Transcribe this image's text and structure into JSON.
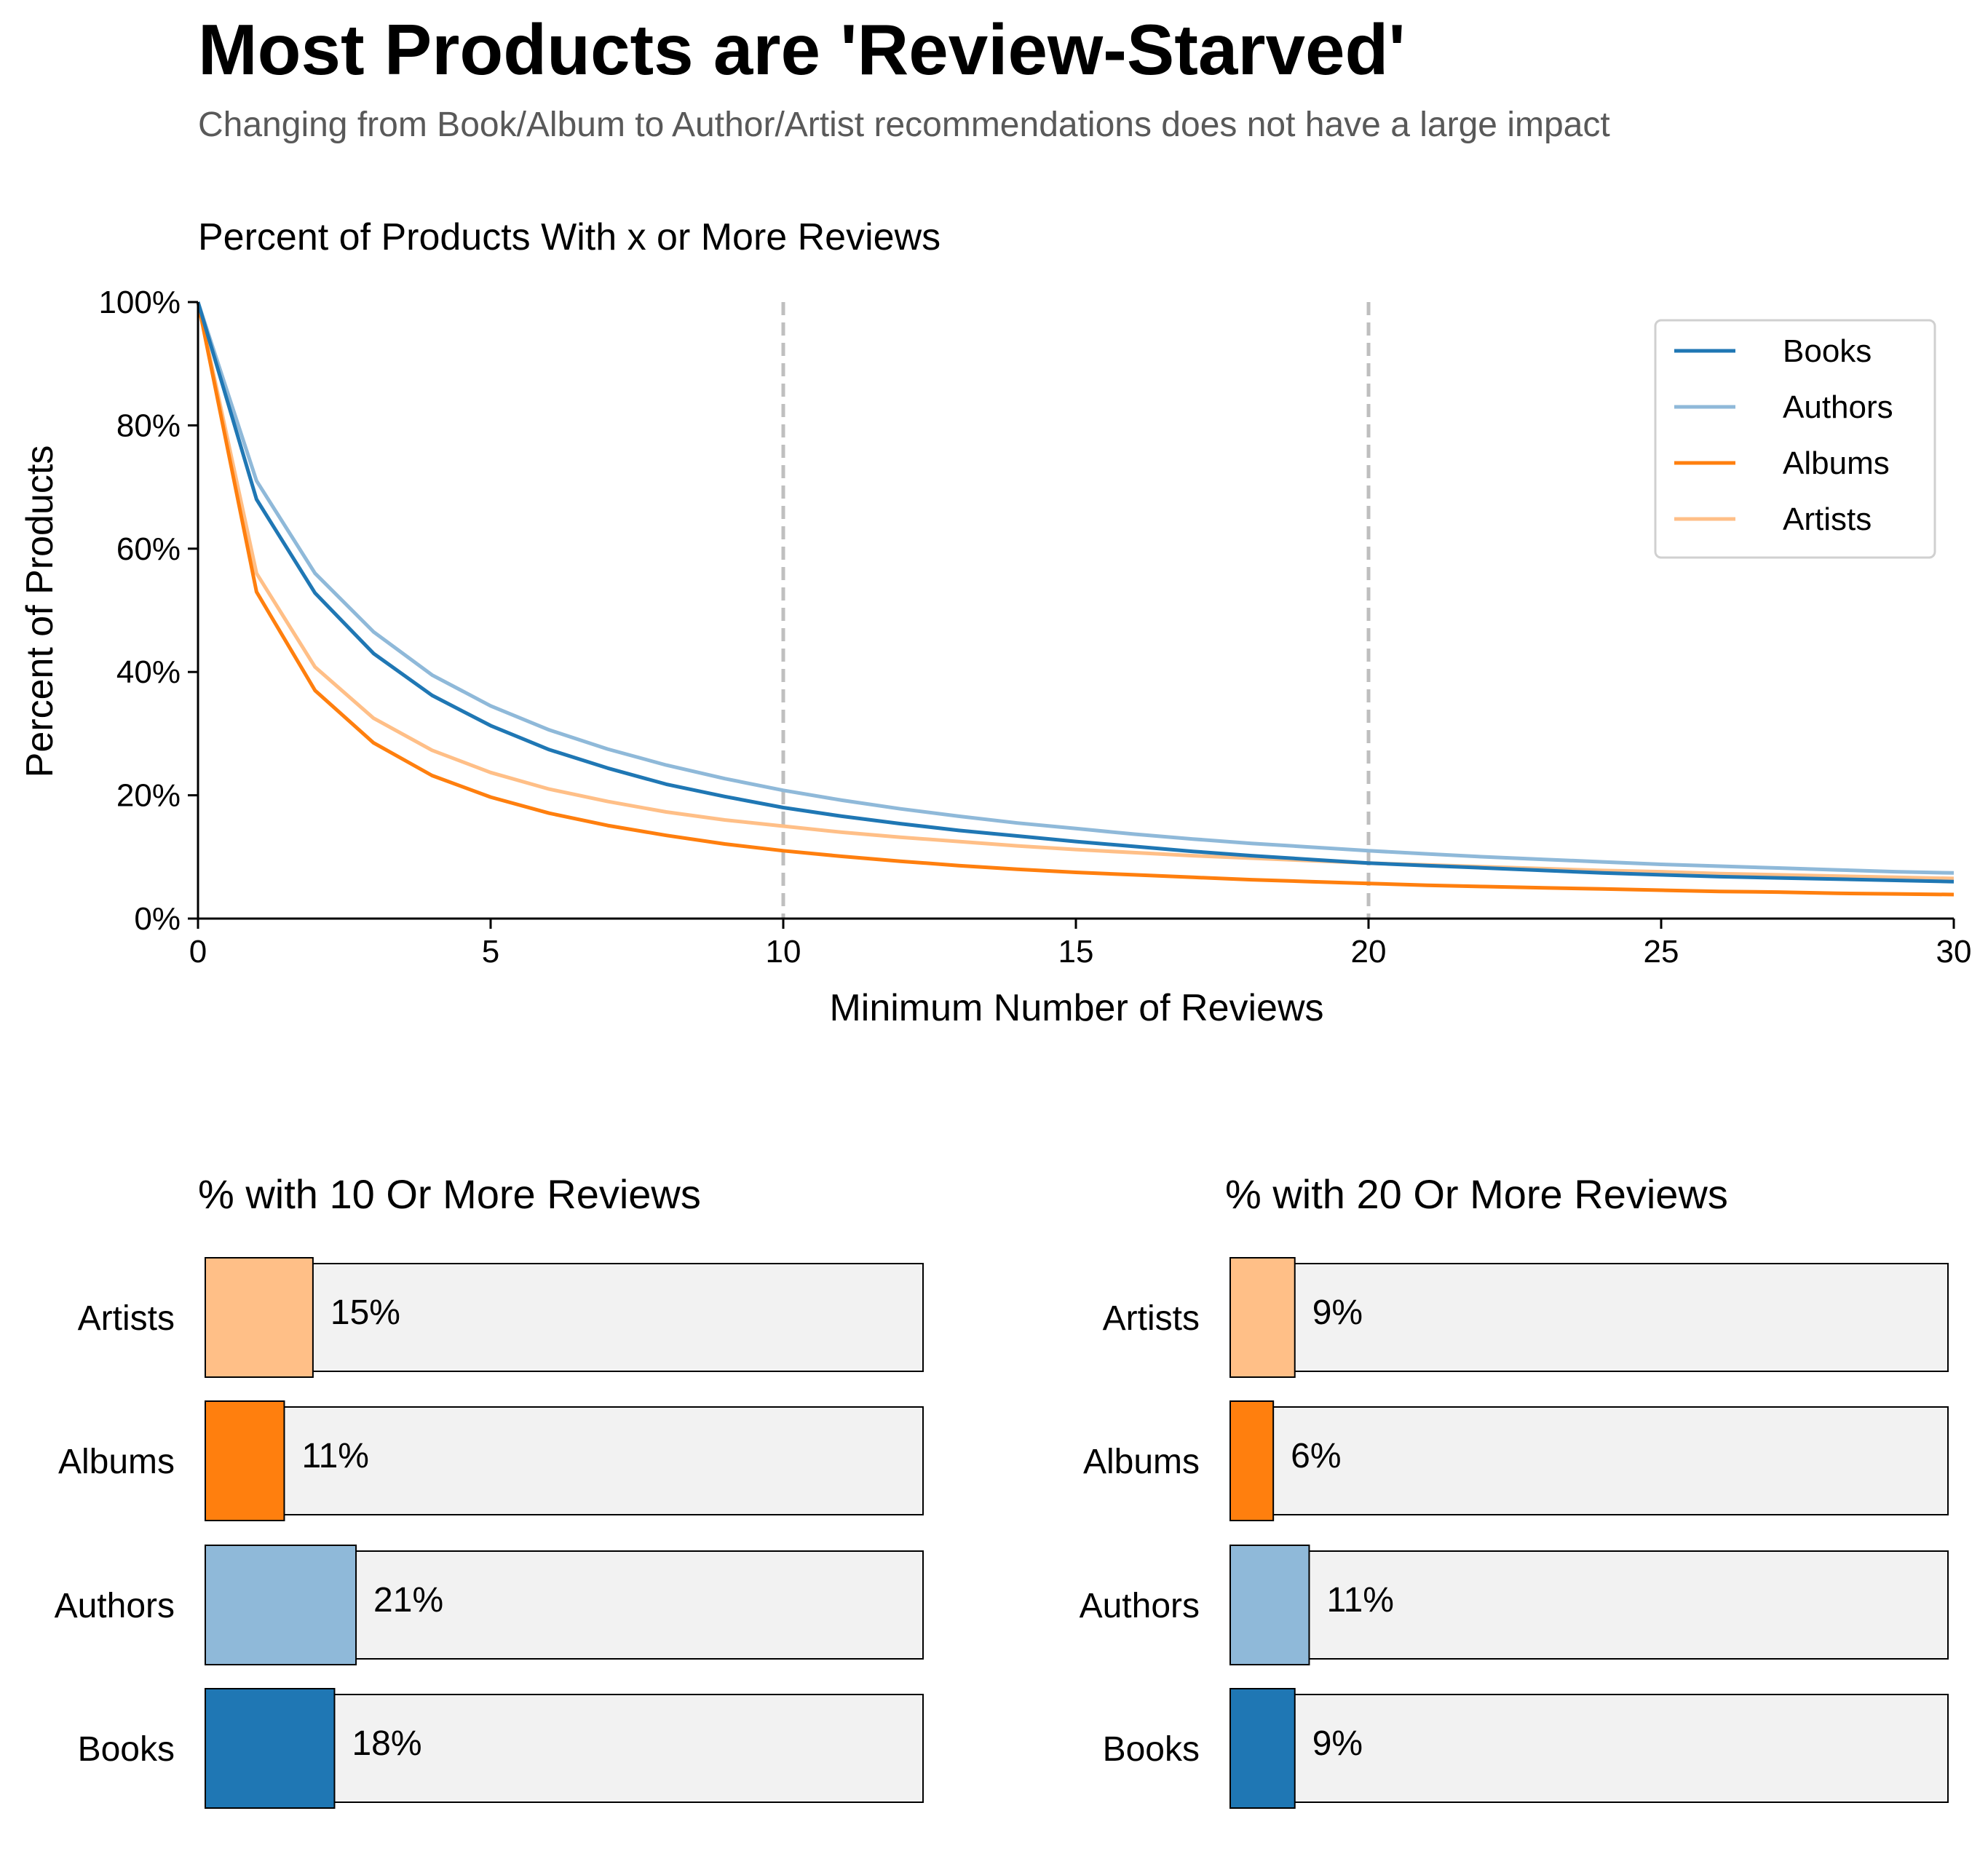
{
  "header": {
    "title": "Most Products are 'Review-Starved'",
    "subtitle": "Changing from Book/Album to Author/Artist recommendations does not have a large impact"
  },
  "colors": {
    "books": "#1f77b4",
    "authors": "#8fb9d9",
    "albums": "#ff7f0e",
    "artists": "#ffbf87",
    "bar_background": "#f2f2f2",
    "reference_line": "#bfbfbf"
  },
  "chart_data": [
    {
      "type": "line",
      "title": "Percent of Products With x or More Reviews",
      "xlabel": "Minimum Number of Reviews",
      "ylabel": "Percent of Products",
      "xlim": [
        0,
        30
      ],
      "ylim": [
        0,
        100
      ],
      "x_ticks": [
        0,
        5,
        10,
        15,
        20,
        25,
        30
      ],
      "y_ticks": [
        0,
        20,
        40,
        60,
        80,
        100
      ],
      "y_tick_labels": [
        "0%",
        "20%",
        "40%",
        "60%",
        "80%",
        "100%"
      ],
      "reference_lines_x": [
        10,
        20
      ],
      "legend_position": "top-right",
      "x": [
        0,
        1,
        2,
        3,
        4,
        5,
        6,
        7,
        8,
        9,
        10,
        11,
        12,
        13,
        14,
        15,
        16,
        17,
        18,
        19,
        20,
        21,
        22,
        23,
        24,
        25,
        26,
        27,
        28,
        29,
        30
      ],
      "series": [
        {
          "name": "Books",
          "color_key": "books",
          "values": [
            100,
            68,
            52.8,
            43,
            36.2,
            31.3,
            27.4,
            24.4,
            21.8,
            19.8,
            18,
            16.6,
            15.4,
            14.3,
            13.4,
            12.5,
            11.7,
            10.9,
            10.2,
            9.6,
            9,
            8.6,
            8.2,
            7.8,
            7.4,
            7.1,
            6.8,
            6.6,
            6.4,
            6.2,
            6
          ]
        },
        {
          "name": "Authors",
          "color_key": "authors",
          "values": [
            100,
            71,
            56,
            46.5,
            39.5,
            34.5,
            30.6,
            27.5,
            24.9,
            22.7,
            20.8,
            19.2,
            17.8,
            16.6,
            15.5,
            14.6,
            13.7,
            12.9,
            12.2,
            11.6,
            11,
            10.5,
            10,
            9.6,
            9.2,
            8.8,
            8.5,
            8.2,
            7.9,
            7.6,
            7.4
          ]
        },
        {
          "name": "Albums",
          "color_key": "albums",
          "values": [
            100,
            53,
            37,
            28.5,
            23.2,
            19.7,
            17.1,
            15.1,
            13.5,
            12.1,
            11,
            10.1,
            9.3,
            8.6,
            8,
            7.5,
            7.1,
            6.7,
            6.3,
            6,
            5.7,
            5.4,
            5.2,
            5,
            4.8,
            4.6,
            4.4,
            4.3,
            4.1,
            4,
            3.9
          ]
        },
        {
          "name": "Artists",
          "color_key": "artists",
          "values": [
            100,
            56,
            40.8,
            32.5,
            27.3,
            23.7,
            21,
            19,
            17.3,
            16,
            15,
            14,
            13.2,
            12.5,
            11.8,
            11.2,
            10.7,
            10.2,
            9.8,
            9.4,
            9,
            8.7,
            8.4,
            8.1,
            7.8,
            7.6,
            7.3,
            7.1,
            6.9,
            6.7,
            6.5
          ]
        }
      ]
    },
    {
      "type": "bar",
      "orientation": "horizontal",
      "title": "% with 10 Or More Reviews",
      "categories": [
        "Artists",
        "Albums",
        "Authors",
        "Books"
      ],
      "color_keys": [
        "artists",
        "albums",
        "authors",
        "books"
      ],
      "values": [
        15,
        11,
        21,
        18
      ],
      "labels": [
        "15%",
        "11%",
        "21%",
        "18%"
      ],
      "xlim": [
        0,
        100
      ]
    },
    {
      "type": "bar",
      "orientation": "horizontal",
      "title": "% with 20 Or More Reviews",
      "categories": [
        "Artists",
        "Albums",
        "Authors",
        "Books"
      ],
      "color_keys": [
        "artists",
        "albums",
        "authors",
        "books"
      ],
      "values": [
        9,
        6,
        11,
        9
      ],
      "labels": [
        "9%",
        "6%",
        "11%",
        "9%"
      ],
      "xlim": [
        0,
        100
      ]
    }
  ]
}
